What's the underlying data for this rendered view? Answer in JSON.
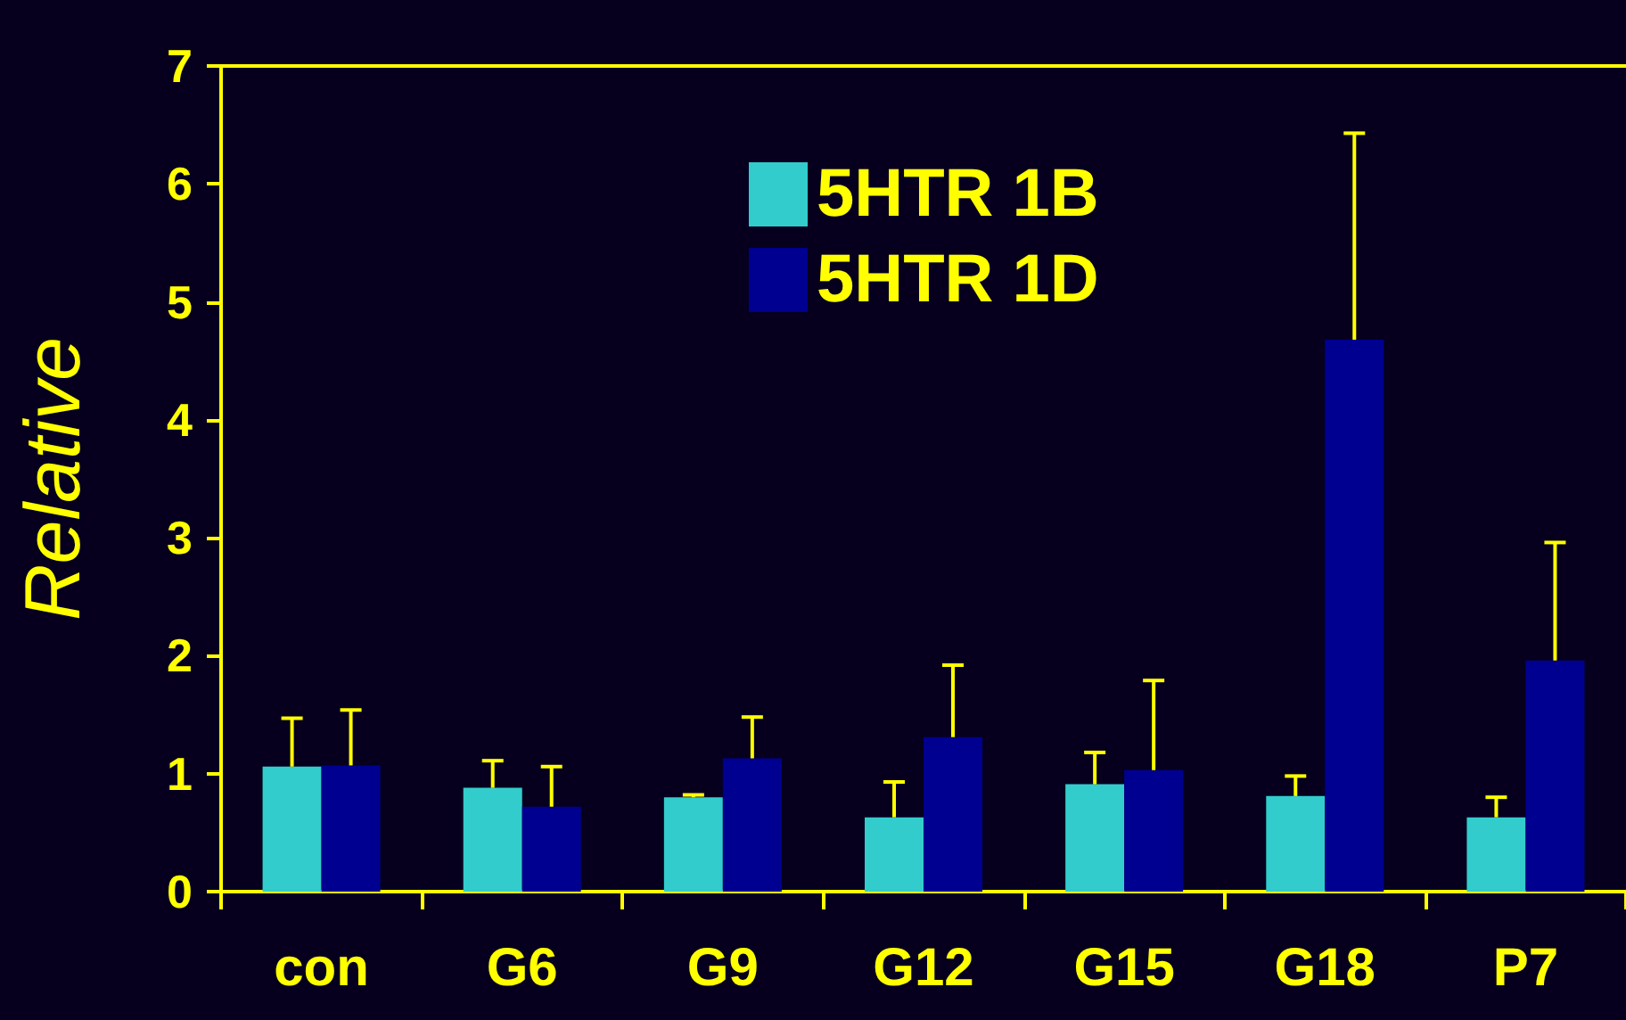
{
  "chart_data": {
    "type": "bar",
    "ylabel": "Relative",
    "categories": [
      "con",
      "G6",
      "G9",
      "G12",
      "G15",
      "G18",
      "P7"
    ],
    "series": [
      {
        "name": "5HTR 1B",
        "color": "#33cccc",
        "values": [
          1.06,
          0.88,
          0.8,
          0.63,
          0.91,
          0.81,
          0.63
        ],
        "errors": [
          [
            1.06,
            1.47
          ],
          [
            0.88,
            1.11
          ],
          [
            0.8,
            0.82
          ],
          [
            0.63,
            0.93
          ],
          [
            0.91,
            1.18
          ],
          [
            0.81,
            0.98
          ],
          [
            0.63,
            0.8
          ]
        ]
      },
      {
        "name": "5HTR 1D",
        "color": "#000090",
        "values": [
          1.07,
          0.72,
          1.13,
          1.31,
          1.03,
          4.68,
          1.96
        ],
        "errors": [
          [
            1.07,
            1.54
          ],
          [
            0.72,
            1.06
          ],
          [
            1.13,
            1.48
          ],
          [
            1.31,
            1.92
          ],
          [
            1.03,
            1.79
          ],
          [
            4.68,
            6.43
          ],
          [
            1.96,
            2.96
          ]
        ]
      }
    ],
    "ylim": [
      0,
      7
    ],
    "yticks": [
      0,
      1,
      2,
      3,
      4,
      5,
      6,
      7
    ],
    "grid": false,
    "legend": "top"
  }
}
